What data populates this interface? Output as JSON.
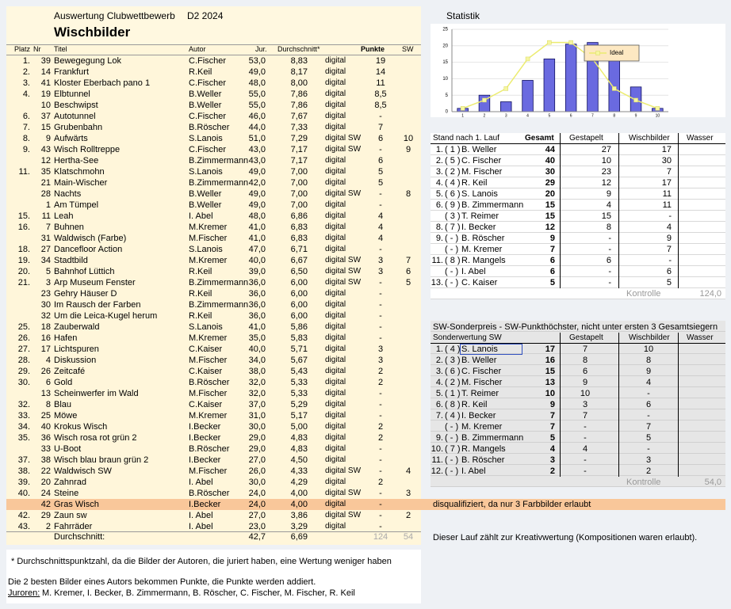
{
  "header": {
    "title": "Auswertung Clubwettbewerb",
    "round": "D2 2024",
    "subtitle": "Wischbilder"
  },
  "results": {
    "columns": [
      "Platz",
      "Nr",
      "Titel",
      "Autor",
      "Jur.",
      "Durchschnitt*",
      "Punkte",
      "SW"
    ],
    "rows": [
      [
        "1.",
        "39",
        "Bewegegung Lok",
        "C.Fischer",
        "53,0",
        "8,83",
        "digital",
        "19"
      ],
      [
        "2.",
        "14",
        "Frankfurt",
        "R.Keil",
        "49,0",
        "8,17",
        "digital",
        "14"
      ],
      [
        "3.",
        "41",
        "Kloster Eberbach pano 1",
        "C.Fischer",
        "48,0",
        "8,00",
        "digital",
        "11"
      ],
      [
        "4.",
        "19",
        "Elbtunnel",
        "B.Weller",
        "55,0",
        "7,86",
        "digital",
        "8,5"
      ],
      [
        null,
        "10",
        "Beschwipst",
        "B.Weller",
        "55,0",
        "7,86",
        "digital",
        "8,5"
      ],
      [
        "6.",
        "37",
        "Autotunnel",
        "C.Fischer",
        "46,0",
        "7,67",
        "digital",
        "-"
      ],
      [
        "7.",
        "15",
        "Grubenbahn",
        "B.Röscher",
        "44,0",
        "7,33",
        "digital",
        "7"
      ],
      [
        "8.",
        "9",
        "Aufwärts",
        "S.Lanois",
        "51,0",
        "7,29",
        "digital SW",
        "6",
        "10"
      ],
      [
        "9.",
        "43",
        "Wisch Rolltreppe",
        "C.Fischer",
        "43,0",
        "7,17",
        "digital SW",
        "-",
        "9"
      ],
      [
        null,
        "12",
        "Hertha-See",
        "B.Zimmermann",
        "43,0",
        "7,17",
        "digital",
        "6"
      ],
      [
        "11.",
        "35",
        "Klatschmohn",
        "S.Lanois",
        "49,0",
        "7,00",
        "digital",
        "5"
      ],
      [
        null,
        "21",
        "Main-Wischer",
        "B.Zimmermann",
        "42,0",
        "7,00",
        "digital",
        "5"
      ],
      [
        null,
        "28",
        "Nachts",
        "B.Weller",
        "49,0",
        "7,00",
        "digital SW",
        "-",
        "8"
      ],
      [
        null,
        "1",
        "Am Tümpel",
        "B.Weller",
        "49,0",
        "7,00",
        "digital",
        "-"
      ],
      [
        "15.",
        "11",
        "Leah",
        "I. Abel",
        "48,0",
        "6,86",
        "digital",
        "4"
      ],
      [
        "16.",
        "7",
        "Buhnen",
        "M.Kremer",
        "41,0",
        "6,83",
        "digital",
        "4"
      ],
      [
        null,
        "31",
        "Waldwisch (Farbe)",
        "M.Fischer",
        "41,0",
        "6,83",
        "digital",
        "4"
      ],
      [
        "18.",
        "27",
        "Dancefloor Action",
        "S.Lanois",
        "47,0",
        "6,71",
        "digital",
        "-"
      ],
      [
        "19.",
        "34",
        "Stadtbild",
        "M.Kremer",
        "40,0",
        "6,67",
        "digital SW",
        "3",
        "7"
      ],
      [
        "20.",
        "5",
        "Bahnhof Lüttich",
        "R.Keil",
        "39,0",
        "6,50",
        "digital SW",
        "3",
        "6"
      ],
      [
        "21.",
        "3",
        "Arp Museum Fenster",
        "B.Zimmermann",
        "36,0",
        "6,00",
        "digital SW",
        "-",
        "5"
      ],
      [
        null,
        "23",
        "Gehry Häuser D",
        "R.Keil",
        "36,0",
        "6,00",
        "digital",
        "-"
      ],
      [
        null,
        "30",
        "Im Rausch der Farben",
        "B.Zimmermann",
        "36,0",
        "6,00",
        "digital",
        "-"
      ],
      [
        null,
        "32",
        "Um die Leica-Kugel herum",
        "R.Keil",
        "36,0",
        "6,00",
        "digital",
        "-"
      ],
      [
        "25.",
        "18",
        "Zauberwald",
        "S.Lanois",
        "41,0",
        "5,86",
        "digital",
        "-"
      ],
      [
        "26.",
        "16",
        "Hafen",
        "M.Kremer",
        "35,0",
        "5,83",
        "digital",
        "-"
      ],
      [
        "27.",
        "17",
        "Lichtspuren",
        "C.Kaiser",
        "40,0",
        "5,71",
        "digital",
        "3"
      ],
      [
        "28.",
        "4",
        "Diskussion",
        "M.Fischer",
        "34,0",
        "5,67",
        "digital",
        "3"
      ],
      [
        "29.",
        "26",
        "Zeitcafé",
        "C.Kaiser",
        "38,0",
        "5,43",
        "digital",
        "2"
      ],
      [
        "30.",
        "6",
        "Gold",
        "B.Röscher",
        "32,0",
        "5,33",
        "digital",
        "2"
      ],
      [
        null,
        "13",
        "Scheinwerfer im Wald",
        "M.Fischer",
        "32,0",
        "5,33",
        "digital",
        "-"
      ],
      [
        "32.",
        "8",
        "Blau",
        "C.Kaiser",
        "37,0",
        "5,29",
        "digital",
        "-"
      ],
      [
        "33.",
        "25",
        "Möwe",
        "M.Kremer",
        "31,0",
        "5,17",
        "digital",
        "-"
      ],
      [
        "34.",
        "40",
        "Krokus Wisch",
        "I.Becker",
        "30,0",
        "5,00",
        "digital",
        "2"
      ],
      [
        "35.",
        "36",
        "Wisch rosa rot grün 2",
        "I.Becker",
        "29,0",
        "4,83",
        "digital",
        "2"
      ],
      [
        null,
        "33",
        "U-Boot",
        "B.Röscher",
        "29,0",
        "4,83",
        "digital",
        "-"
      ],
      [
        "37.",
        "38",
        "Wisch blau braun grün 2",
        "I.Becker",
        "27,0",
        "4,50",
        "digital",
        "-"
      ],
      [
        "38.",
        "22",
        "Waldwisch SW",
        "M.Fischer",
        "26,0",
        "4,33",
        "digital SW",
        "-",
        "4"
      ],
      [
        "39.",
        "20",
        "Zahnrad",
        "I. Abel",
        "30,0",
        "4,29",
        "digital",
        "2"
      ],
      [
        "40.",
        "24",
        "Steine",
        "B.Röscher",
        "24,0",
        "4,00",
        "digital SW",
        "-",
        "3"
      ],
      [
        null,
        "42",
        "Gras Wisch",
        "I.Becker",
        "24,0",
        "4,00",
        "digital",
        "-"
      ],
      [
        "42.",
        "29",
        "Zaun sw",
        "I. Abel",
        "27,0",
        "3,86",
        "digital SW",
        "-",
        "2"
      ],
      [
        "43.",
        "2",
        "Fahrräder",
        "I. Abel",
        "23,0",
        "3,29",
        "digital",
        "-"
      ]
    ],
    "disqualified_row": 40,
    "footer": {
      "label": "Durchschnitt:",
      "jur": "42,7",
      "avg": "6,69",
      "punkte": "124",
      "sw": "54"
    }
  },
  "chart_data": {
    "type": "bar",
    "title": "Statistik",
    "categories": [
      "1",
      "2",
      "3",
      "4",
      "5",
      "6",
      "7",
      "8",
      "9",
      "10"
    ],
    "values": [
      1,
      5,
      3,
      9.5,
      16,
      20.5,
      21,
      16,
      7.5,
      1
    ],
    "color": "#6a6ae0",
    "series": [
      {
        "name": "Ideal",
        "color": "#ecec70",
        "type": "line",
        "values": [
          1,
          3.5,
          7,
          16,
          21,
          21,
          16,
          7,
          3.5,
          1
        ]
      }
    ],
    "ylim": [
      0,
      25
    ],
    "yticks": [
      0,
      5,
      10,
      15,
      20,
      25
    ],
    "grid": true
  },
  "standings": {
    "columns": [
      "Stand nach 1. Lauf",
      "Gesamt",
      "Gestapelt",
      "Wischbilder",
      "Wasser"
    ],
    "rows": [
      [
        "1.",
        "( 1 )",
        "B. Weller",
        "44",
        "27",
        "17"
      ],
      [
        "2.",
        "( 5 )",
        "C. Fischer",
        "40",
        "10",
        "30"
      ],
      [
        "3.",
        "( 2 )",
        "M. Fischer",
        "30",
        "23",
        "7"
      ],
      [
        "4.",
        "( 4 )",
        "R. Keil",
        "29",
        "12",
        "17"
      ],
      [
        "5.",
        "( 6 )",
        "S. Lanois",
        "20",
        "9",
        "11"
      ],
      [
        "6.",
        "( 9 )",
        "B. Zimmermann",
        "15",
        "4",
        "11"
      ],
      [
        null,
        "( 3 )",
        "T. Reimer",
        "15",
        "15",
        "-"
      ],
      [
        "8.",
        "( 7 )",
        "I. Becker",
        "12",
        "8",
        "4"
      ],
      [
        "9.",
        "( - )",
        "B. Röscher",
        "9",
        "-",
        "9"
      ],
      [
        null,
        "( - )",
        "M. Kremer",
        "7",
        "-",
        "7"
      ],
      [
        "11.",
        "( 8 )",
        "R. Mangels",
        "6",
        "6",
        "-"
      ],
      [
        null,
        "( - )",
        "I. Abel",
        "6",
        "-",
        "6"
      ],
      [
        "13.",
        "( - )",
        "C. Kaiser",
        "5",
        "-",
        "5"
      ]
    ],
    "control_label": "Kontrolle",
    "control_value": "124,0"
  },
  "sw": {
    "title": "SW-Sonderpreis - SW-Punkthöchster, nicht unter ersten 3 Gesamtsiegern",
    "columns": [
      "Sonderwertung SW",
      "Gestapelt",
      "Wischbilder",
      "Wasser"
    ],
    "rows": [
      [
        "1.",
        "( 4 )",
        "S. Lanois",
        "17",
        "7",
        "10"
      ],
      [
        "2.",
        "( 3 )",
        "B. Weller",
        "16",
        "8",
        "8"
      ],
      [
        "3.",
        "( 6 )",
        "C. Fischer",
        "15",
        "6",
        "9"
      ],
      [
        "4.",
        "( 2 )",
        "M. Fischer",
        "13",
        "9",
        "4"
      ],
      [
        "5.",
        "( 1 )",
        "T. Reimer",
        "10",
        "10",
        "-"
      ],
      [
        "6.",
        "( 8 )",
        "R. Keil",
        "9",
        "3",
        "6"
      ],
      [
        "7.",
        "( 4 )",
        "I. Becker",
        "7",
        "7",
        "-"
      ],
      [
        null,
        "( - )",
        "M. Kremer",
        "7",
        "-",
        "7"
      ],
      [
        "9.",
        "( - )",
        "B. Zimmermann",
        "5",
        "-",
        "5"
      ],
      [
        "10.",
        "( 7 )",
        "R. Mangels",
        "4",
        "4",
        "-"
      ],
      [
        "11.",
        "( - )",
        "B. Röscher",
        "3",
        "-",
        "3"
      ],
      [
        "12.",
        "( - )",
        "I. Abel",
        "2",
        "-",
        "2"
      ]
    ],
    "control_label": "Kontrolle",
    "control_value": "54,0"
  },
  "notes": {
    "disqualified": "disqualifiziert, da nur 3 Farbbilder erlaubt",
    "creative": "Dieser Lauf zählt zur Kreativwertung (Kompositionen waren erlaubt).",
    "footnote": "* Durchschnittspunktzahl, da die Bilder der Autoren, die juriert haben, eine Wertung weniger haben",
    "rule": "Die 2 besten Bilder eines Autors bekommen Punkte, die Punkte werden addiert.",
    "jurors_label": "Juroren:",
    "jurors": "M. Kremer, I. Becker, B. Zimmermann, B. Röscher, C. Fischer, M. Fischer, R. Keil"
  }
}
